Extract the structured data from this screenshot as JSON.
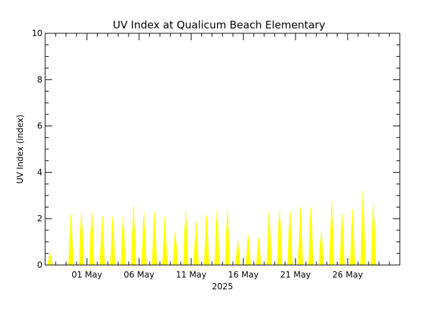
{
  "chart_data": {
    "type": "area",
    "title": "UV Index at Qualicum Beach Elementary",
    "ylabel": "UV Index (index)",
    "xlabel": "2025",
    "ylim": [
      0,
      10
    ],
    "yticks": [
      "0",
      "2",
      "4",
      "6",
      "8",
      "10"
    ],
    "xlim": [
      "2025-04-27",
      "2025-05-31"
    ],
    "xticks": [
      {
        "date": "2025-05-01",
        "label": "01 May"
      },
      {
        "date": "2025-05-06",
        "label": "06 May"
      },
      {
        "date": "2025-05-11",
        "label": "11 May"
      },
      {
        "date": "2025-05-16",
        "label": "16 May"
      },
      {
        "date": "2025-05-21",
        "label": "21 May"
      },
      {
        "date": "2025-05-26",
        "label": "26 May"
      }
    ],
    "grid": false,
    "fill_color": "#ffff00",
    "series": [
      {
        "dates": [
          "2025-04-27",
          "2025-04-28",
          "2025-04-29",
          "2025-04-30",
          "2025-05-01",
          "2025-05-02",
          "2025-05-03",
          "2025-05-04",
          "2025-05-05",
          "2025-05-06",
          "2025-05-07",
          "2025-05-08",
          "2025-05-09",
          "2025-05-10",
          "2025-05-11",
          "2025-05-12",
          "2025-05-13",
          "2025-05-14",
          "2025-05-15",
          "2025-05-16",
          "2025-05-17",
          "2025-05-18",
          "2025-05-19",
          "2025-05-20",
          "2025-05-21",
          "2025-05-22",
          "2025-05-23",
          "2025-05-24",
          "2025-05-25",
          "2025-05-26",
          "2025-05-27",
          "2025-05-28",
          "2025-05-29",
          "2025-05-30",
          "2025-05-31"
        ],
        "daily_peak": [
          0.5,
          0.0,
          2.2,
          2.25,
          2.3,
          2.1,
          2.1,
          2.1,
          2.55,
          2.25,
          2.3,
          2.1,
          1.45,
          2.3,
          1.85,
          2.15,
          2.35,
          2.35,
          1.05,
          1.3,
          1.15,
          2.3,
          2.4,
          2.35,
          2.5,
          2.5,
          1.45,
          2.75,
          2.2,
          2.4,
          3.2,
          2.7,
          0.0,
          0.0,
          0.0
        ]
      }
    ]
  }
}
